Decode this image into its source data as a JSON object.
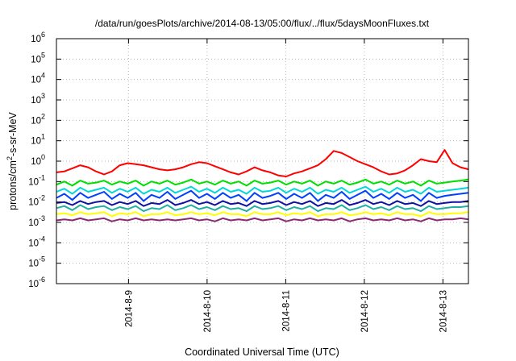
{
  "chart_data": {
    "type": "line",
    "title": "/data/run/goesPlots/archive/2014-08-13/05:00/flux/../flux/5daysMoonFluxes.txt",
    "xlabel": "Coordinated Universal Time (UTC)",
    "ylabel": "protons/cm2-s-sr-MeV",
    "ylabel_parts": {
      "pre": "protons/cm",
      "sup": "2",
      "post": "-s-sr-MeV"
    },
    "y_scale": "log",
    "ylim_exp": [
      -6,
      6
    ],
    "y_ticks": [
      {
        "base": "10",
        "exp": "6"
      },
      {
        "base": "10",
        "exp": "5"
      },
      {
        "base": "10",
        "exp": "4"
      },
      {
        "base": "10",
        "exp": "3"
      },
      {
        "base": "10",
        "exp": "2"
      },
      {
        "base": "10",
        "exp": "1"
      },
      {
        "base": "10",
        "exp": "0"
      },
      {
        "base": "10",
        "exp": "-1"
      },
      {
        "base": "10",
        "exp": "-2"
      },
      {
        "base": "10",
        "exp": "-3"
      },
      {
        "base": "10",
        "exp": "-4"
      },
      {
        "base": "10",
        "exp": "-5"
      },
      {
        "base": "10",
        "exp": "-6"
      }
    ],
    "x_range_days": [
      "2014-08-08 02:00",
      "2014-08-13 05:00"
    ],
    "x_ticks": [
      "2014-8-9",
      "2014-8-10",
      "2014-8-11",
      "2014-8-12",
      "2014-8-13"
    ],
    "grid": true,
    "legend": "none",
    "series": [
      {
        "color": "#ff0000",
        "approx_log10_values": [
          -0.55,
          -0.5,
          -0.35,
          -0.2,
          -0.3,
          -0.5,
          -0.65,
          -0.5,
          -0.2,
          -0.1,
          -0.15,
          -0.2,
          -0.3,
          -0.4,
          -0.45,
          -0.4,
          -0.3,
          -0.15,
          -0.05,
          -0.1,
          -0.25,
          -0.4,
          -0.55,
          -0.65,
          -0.5,
          -0.3,
          -0.45,
          -0.55,
          -0.7,
          -0.75,
          -0.6,
          -0.5,
          -0.35,
          -0.2,
          0.1,
          0.5,
          0.4,
          0.2,
          0.0,
          -0.15,
          -0.3,
          -0.5,
          -0.65,
          -0.6,
          -0.45,
          -0.2,
          0.1,
          0.0,
          -0.05,
          0.55,
          -0.1,
          -0.3,
          -0.4
        ]
      },
      {
        "color": "#00e000",
        "approx_log10_values": [
          -1.15,
          -1.0,
          -1.2,
          -0.95,
          -1.1,
          -1.05,
          -0.95,
          -1.15,
          -1.0,
          -1.1,
          -0.95,
          -1.2,
          -1.0,
          -1.1,
          -0.95,
          -1.15,
          -1.05,
          -0.9,
          -1.1,
          -1.0,
          -1.15,
          -0.95,
          -1.1,
          -1.0,
          -1.2,
          -0.95,
          -1.1,
          -1.05,
          -0.95,
          -1.15,
          -1.0,
          -1.1,
          -0.95,
          -1.2,
          -1.0,
          -1.1,
          -0.95,
          -1.15,
          -1.05,
          -0.9,
          -1.1,
          -1.0,
          -1.15,
          -0.95,
          -1.1,
          -1.0,
          -1.2,
          -0.95,
          -1.1,
          -1.05,
          -1.0,
          -0.95,
          -0.9
        ]
      },
      {
        "color": "#00d8d8",
        "approx_log10_values": [
          -1.5,
          -1.35,
          -1.6,
          -1.3,
          -1.5,
          -1.4,
          -1.3,
          -1.55,
          -1.35,
          -1.5,
          -1.3,
          -1.6,
          -1.4,
          -1.5,
          -1.3,
          -1.55,
          -1.4,
          -1.25,
          -1.5,
          -1.35,
          -1.55,
          -1.3,
          -1.5,
          -1.4,
          -1.6,
          -1.3,
          -1.5,
          -1.45,
          -1.3,
          -1.55,
          -1.35,
          -1.5,
          -1.3,
          -1.6,
          -1.4,
          -1.5,
          -1.3,
          -1.55,
          -1.4,
          -1.25,
          -1.5,
          -1.35,
          -1.55,
          -1.3,
          -1.5,
          -1.4,
          -1.6,
          -1.3,
          -1.5,
          -1.45,
          -1.4,
          -1.35,
          -1.3
        ]
      },
      {
        "color": "#0040ff",
        "approx_log10_values": [
          -1.8,
          -1.6,
          -1.9,
          -1.55,
          -1.8,
          -1.65,
          -1.5,
          -1.85,
          -1.6,
          -1.8,
          -1.55,
          -1.95,
          -1.65,
          -1.8,
          -1.5,
          -1.85,
          -1.65,
          -1.45,
          -1.8,
          -1.6,
          -1.85,
          -1.55,
          -1.8,
          -1.65,
          -1.95,
          -1.55,
          -1.8,
          -1.7,
          -1.55,
          -1.85,
          -1.6,
          -1.8,
          -1.55,
          -1.95,
          -1.65,
          -1.8,
          -1.5,
          -1.85,
          -1.65,
          -1.45,
          -1.8,
          -1.6,
          -1.85,
          -1.55,
          -1.8,
          -1.65,
          -1.95,
          -1.55,
          -1.8,
          -1.7,
          -1.65,
          -1.6,
          -1.55
        ]
      },
      {
        "color": "#1010a0",
        "approx_log10_values": [
          -2.05,
          -2.0,
          -2.15,
          -1.95,
          -2.1,
          -2.0,
          -1.95,
          -2.15,
          -2.0,
          -2.1,
          -1.95,
          -2.2,
          -2.05,
          -2.1,
          -1.9,
          -2.15,
          -2.05,
          -1.9,
          -2.1,
          -2.0,
          -2.15,
          -1.95,
          -2.1,
          -2.05,
          -2.2,
          -1.95,
          -2.1,
          -2.05,
          -1.95,
          -2.15,
          -2.0,
          -2.1,
          -1.95,
          -2.2,
          -2.05,
          -2.1,
          -1.9,
          -2.15,
          -2.05,
          -1.9,
          -2.1,
          -2.0,
          -2.15,
          -1.95,
          -2.1,
          -2.05,
          -2.2,
          -1.95,
          -2.1,
          -2.05,
          -2.0,
          -2.0,
          -1.95
        ]
      },
      {
        "color": "#20b0a0",
        "approx_log10_values": [
          -2.3,
          -2.2,
          -2.4,
          -2.15,
          -2.35,
          -2.25,
          -2.2,
          -2.4,
          -2.25,
          -2.35,
          -2.2,
          -2.45,
          -2.3,
          -2.35,
          -2.15,
          -2.4,
          -2.3,
          -2.15,
          -2.35,
          -2.25,
          -2.4,
          -2.2,
          -2.35,
          -2.3,
          -2.45,
          -2.2,
          -2.35,
          -2.3,
          -2.2,
          -2.4,
          -2.25,
          -2.35,
          -2.2,
          -2.45,
          -2.3,
          -2.35,
          -2.15,
          -2.4,
          -2.3,
          -2.15,
          -2.35,
          -2.25,
          -2.4,
          -2.2,
          -2.35,
          -2.3,
          -2.45,
          -2.2,
          -2.35,
          -2.3,
          -2.25,
          -2.25,
          -2.2
        ]
      },
      {
        "color": "#ffff00",
        "approx_log10_values": [
          -2.6,
          -2.55,
          -2.65,
          -2.5,
          -2.6,
          -2.55,
          -2.5,
          -2.7,
          -2.55,
          -2.6,
          -2.5,
          -2.7,
          -2.6,
          -2.6,
          -2.5,
          -2.65,
          -2.6,
          -2.5,
          -2.6,
          -2.55,
          -2.65,
          -2.5,
          -2.6,
          -2.6,
          -2.7,
          -2.5,
          -2.6,
          -2.6,
          -2.5,
          -2.65,
          -2.55,
          -2.6,
          -2.5,
          -2.7,
          -2.6,
          -2.6,
          -2.5,
          -2.65,
          -2.6,
          -2.5,
          -2.6,
          -2.55,
          -2.65,
          -2.5,
          -2.6,
          -2.6,
          -2.7,
          -2.5,
          -2.6,
          -2.6,
          -2.55,
          -2.55,
          -2.5
        ]
      },
      {
        "color": "#8a2a70",
        "approx_log10_values": [
          -2.9,
          -2.85,
          -2.9,
          -2.8,
          -2.9,
          -2.85,
          -2.8,
          -2.95,
          -2.85,
          -2.9,
          -2.8,
          -2.9,
          -2.85,
          -2.9,
          -2.85,
          -2.9,
          -2.85,
          -2.8,
          -2.9,
          -2.85,
          -2.95,
          -2.8,
          -2.9,
          -2.85,
          -2.9,
          -2.8,
          -2.9,
          -2.85,
          -2.8,
          -2.95,
          -2.85,
          -2.9,
          -2.8,
          -2.9,
          -2.85,
          -2.9,
          -2.8,
          -2.95,
          -2.85,
          -2.8,
          -2.9,
          -2.85,
          -2.9,
          -2.8,
          -2.9,
          -2.85,
          -2.95,
          -2.8,
          -2.9,
          -2.85,
          -2.85,
          -2.8,
          -2.85
        ]
      }
    ]
  }
}
